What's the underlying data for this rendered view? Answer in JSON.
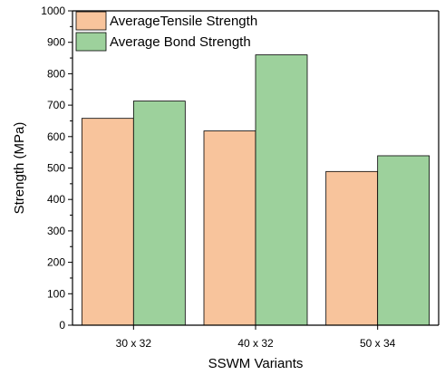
{
  "chart_data": {
    "type": "bar",
    "categories": [
      "30 x 32",
      "40 x 32",
      "50 x 34"
    ],
    "series": [
      {
        "name": "AverageTensile Strength",
        "values": [
          658,
          618,
          489
        ],
        "color": "#F8C49C"
      },
      {
        "name": "Average Bond Strength",
        "values": [
          713,
          860,
          539
        ],
        "color": "#9DD19C"
      }
    ],
    "xlabel": "SSWM Variants",
    "ylabel": "Strength (MPa)",
    "ylim": [
      0,
      1000
    ],
    "yticks": [
      0,
      100,
      200,
      300,
      400,
      500,
      600,
      700,
      800,
      900,
      1000
    ],
    "grid": false,
    "legend_position": "top-left",
    "bar_edge_color": "#000000"
  }
}
